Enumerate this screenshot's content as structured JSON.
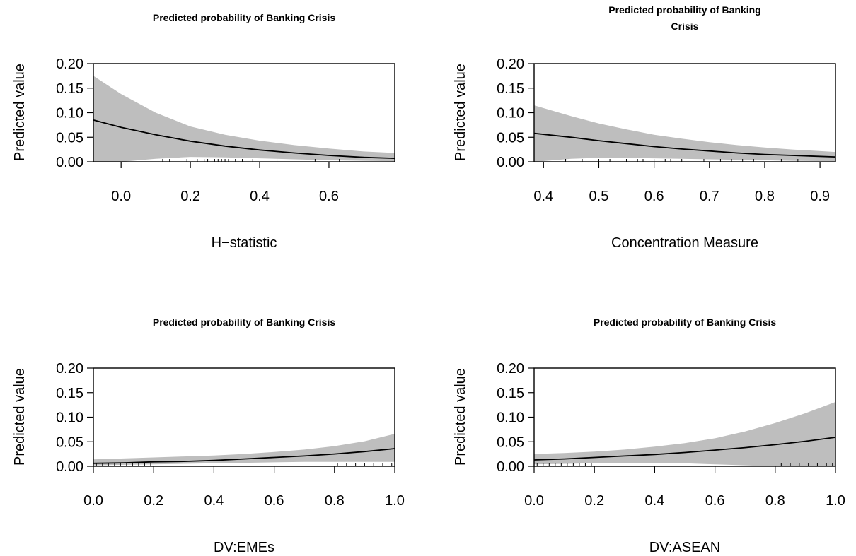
{
  "chart_data": [
    {
      "type": "line",
      "title_lines": [
        "Predicted probability of Banking Crisis"
      ],
      "xlabel": "H−statistic",
      "ylabel": "Predicted value",
      "xlim": [
        -0.08,
        0.79
      ],
      "ylim": [
        0,
        0.2
      ],
      "xticks": [
        "0.0",
        "0.2",
        "0.4",
        "0.6"
      ],
      "yticks": [
        "0.00",
        "0.05",
        "0.10",
        "0.15",
        "0.20"
      ],
      "grid": false,
      "series": [
        {
          "x": [
            -0.08,
            0.0,
            0.1,
            0.2,
            0.3,
            0.4,
            0.5,
            0.6,
            0.7,
            0.79
          ],
          "y": [
            0.085,
            0.07,
            0.055,
            0.042,
            0.032,
            0.024,
            0.018,
            0.013,
            0.009,
            0.007
          ]
        }
      ],
      "confidence_band": {
        "x": [
          -0.08,
          0.0,
          0.1,
          0.2,
          0.3,
          0.4,
          0.5,
          0.6,
          0.7,
          0.79
        ],
        "upper": [
          0.175,
          0.138,
          0.1,
          0.072,
          0.055,
          0.043,
          0.034,
          0.027,
          0.021,
          0.018
        ],
        "lower": [
          0.0,
          0.0,
          0.006,
          0.01,
          0.009,
          0.007,
          0.005,
          0.003,
          0.002,
          0.001
        ]
      },
      "rug_x": [
        0.12,
        0.14,
        0.19,
        0.22,
        0.24,
        0.25,
        0.27,
        0.28,
        0.29,
        0.3,
        0.31,
        0.33,
        0.35,
        0.38,
        0.45,
        0.56,
        0.63
      ]
    },
    {
      "type": "line",
      "title_lines": [
        "Predicted probability of Banking",
        "Crisis"
      ],
      "xlabel": "Concentration Measure",
      "ylabel": "Predicted value",
      "xlim": [
        0.383,
        0.928
      ],
      "ylim": [
        0,
        0.2
      ],
      "xticks": [
        "0.4",
        "0.5",
        "0.6",
        "0.7",
        "0.8",
        "0.9"
      ],
      "yticks": [
        "0.00",
        "0.05",
        "0.10",
        "0.15",
        "0.20"
      ],
      "grid": false,
      "series": [
        {
          "x": [
            0.383,
            0.45,
            0.5,
            0.55,
            0.6,
            0.65,
            0.7,
            0.75,
            0.8,
            0.85,
            0.928
          ],
          "y": [
            0.058,
            0.05,
            0.043,
            0.037,
            0.031,
            0.026,
            0.022,
            0.018,
            0.015,
            0.013,
            0.01
          ]
        }
      ],
      "confidence_band": {
        "x": [
          0.383,
          0.45,
          0.5,
          0.55,
          0.6,
          0.65,
          0.7,
          0.75,
          0.8,
          0.85,
          0.928
        ],
        "upper": [
          0.115,
          0.093,
          0.078,
          0.066,
          0.055,
          0.047,
          0.04,
          0.034,
          0.029,
          0.025,
          0.02
        ],
        "lower": [
          0.0,
          0.006,
          0.008,
          0.008,
          0.007,
          0.006,
          0.005,
          0.004,
          0.003,
          0.002,
          0.001
        ]
      },
      "rug_x": [
        0.44,
        0.47,
        0.5,
        0.52,
        0.55,
        0.57,
        0.58,
        0.6,
        0.62,
        0.63,
        0.65,
        0.69,
        0.72,
        0.74,
        0.76,
        0.78,
        0.83,
        0.86
      ]
    },
    {
      "type": "line",
      "title_lines": [
        "Predicted probability of Banking Crisis"
      ],
      "xlabel": "DV:EMEs",
      "ylabel": "Predicted value",
      "xlim": [
        0,
        1
      ],
      "ylim": [
        0,
        0.2
      ],
      "xticks": [
        "0.0",
        "0.2",
        "0.4",
        "0.6",
        "0.8",
        "1.0"
      ],
      "yticks": [
        "0.00",
        "0.05",
        "0.10",
        "0.15",
        "0.20"
      ],
      "grid": false,
      "series": [
        {
          "x": [
            0,
            0.1,
            0.2,
            0.3,
            0.4,
            0.5,
            0.6,
            0.7,
            0.8,
            0.9,
            1.0
          ],
          "y": [
            0.006,
            0.007,
            0.009,
            0.01,
            0.012,
            0.015,
            0.018,
            0.021,
            0.025,
            0.03,
            0.036
          ]
        }
      ],
      "confidence_band": {
        "x": [
          0,
          0.1,
          0.2,
          0.3,
          0.4,
          0.5,
          0.6,
          0.7,
          0.8,
          0.9,
          1.0
        ],
        "upper": [
          0.014,
          0.016,
          0.018,
          0.02,
          0.022,
          0.025,
          0.029,
          0.034,
          0.041,
          0.051,
          0.066
        ],
        "lower": [
          0.002,
          0.003,
          0.004,
          0.005,
          0.006,
          0.007,
          0.008,
          0.009,
          0.009,
          0.009,
          0.009
        ]
      },
      "rug_x": [
        0.01,
        0.03,
        0.05,
        0.07,
        0.09,
        0.11,
        0.13,
        0.15,
        0.17,
        0.19,
        0.81,
        0.84,
        0.87,
        0.9,
        0.93,
        0.96,
        0.99
      ]
    },
    {
      "type": "line",
      "title_lines": [
        "Predicted probability of Banking Crisis"
      ],
      "xlabel": "DV:ASEAN",
      "ylabel": "Predicted value",
      "xlim": [
        0,
        1
      ],
      "ylim": [
        0,
        0.2
      ],
      "xticks": [
        "0.0",
        "0.2",
        "0.4",
        "0.6",
        "0.8",
        "1.0"
      ],
      "yticks": [
        "0.00",
        "0.05",
        "0.10",
        "0.15",
        "0.20"
      ],
      "grid": false,
      "series": [
        {
          "x": [
            0,
            0.1,
            0.2,
            0.3,
            0.4,
            0.5,
            0.6,
            0.7,
            0.8,
            0.9,
            1.0
          ],
          "y": [
            0.013,
            0.015,
            0.018,
            0.021,
            0.024,
            0.028,
            0.033,
            0.038,
            0.044,
            0.051,
            0.059
          ]
        }
      ],
      "confidence_band": {
        "x": [
          0,
          0.1,
          0.2,
          0.3,
          0.4,
          0.5,
          0.6,
          0.7,
          0.8,
          0.9,
          1.0
        ],
        "upper": [
          0.025,
          0.027,
          0.03,
          0.034,
          0.04,
          0.047,
          0.057,
          0.071,
          0.088,
          0.108,
          0.131
        ],
        "lower": [
          0.004,
          0.005,
          0.006,
          0.007,
          0.007,
          0.006,
          0.004,
          0.002,
          0.0,
          0.0,
          0.0
        ]
      },
      "rug_x": [
        0.01,
        0.03,
        0.05,
        0.07,
        0.09,
        0.11,
        0.13,
        0.15,
        0.17,
        0.19,
        0.82,
        0.85,
        0.88,
        0.91,
        0.94,
        0.97,
        0.99
      ]
    }
  ]
}
